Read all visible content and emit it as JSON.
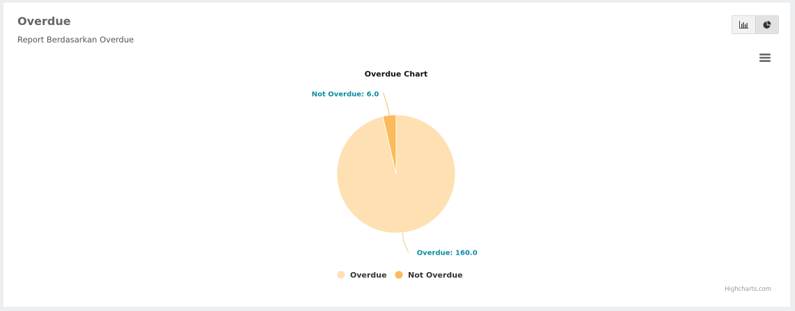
{
  "panel": {
    "title": "Overdue",
    "subtitle": "Report Berdasarkan Overdue",
    "toggle": [
      {
        "icon": "bar-chart-icon",
        "active": false
      },
      {
        "icon": "pie-chart-icon",
        "active": true
      }
    ],
    "menu_icon": "hamburger-menu-icon",
    "credits": "Highcharts.com"
  },
  "chart_data": {
    "type": "pie",
    "title": "Overdue Chart",
    "slices": [
      {
        "name": "Overdue",
        "value": 160.0,
        "color": "#fee0b2",
        "label": "Overdue: 160.0"
      },
      {
        "name": "Not Overdue",
        "value": 6.0,
        "color": "#fbba5b",
        "label": "Not Overdue: 6.0"
      }
    ],
    "legend_position": "bottom-center",
    "label_color": "#0b8ea0"
  }
}
